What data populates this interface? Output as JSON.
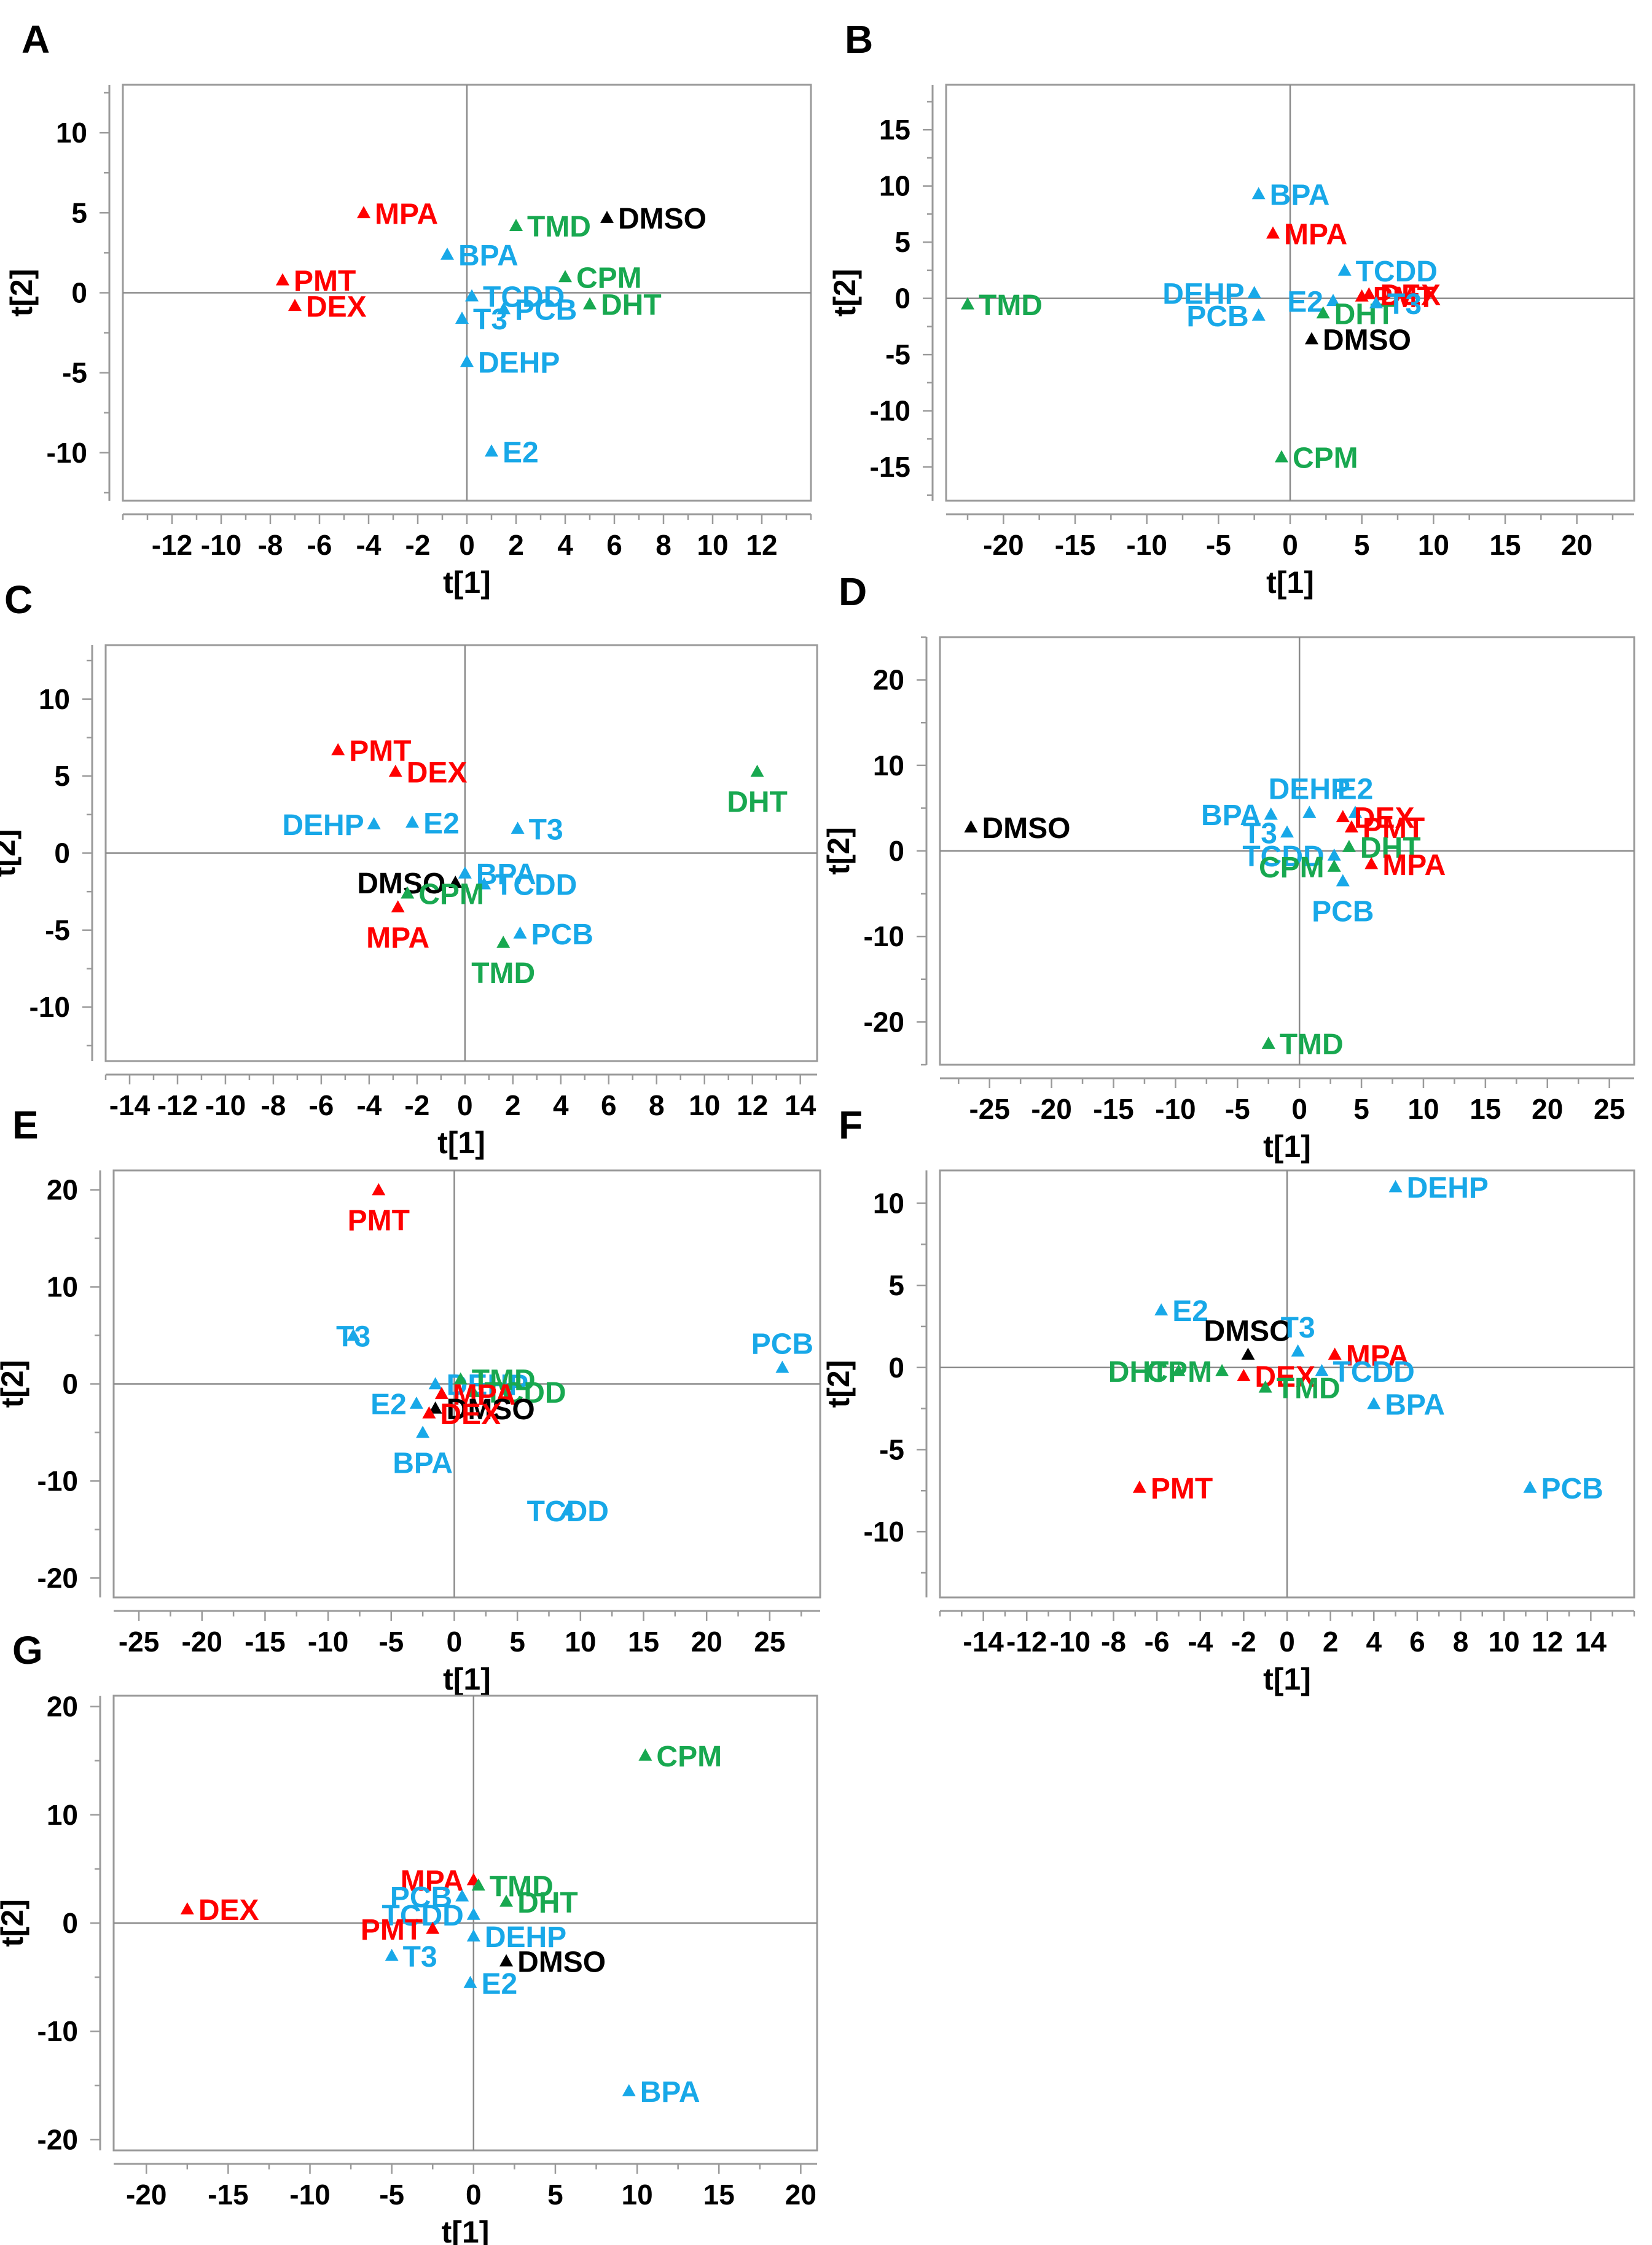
{
  "colors": {
    "red": "#ff0000",
    "blue": "#18a8e8",
    "green": "#18a850",
    "black": "#000000"
  },
  "chart_data": [
    {
      "panel": "A",
      "type": "scatter",
      "xlabel": "t[1]",
      "ylabel": "t[2]",
      "xlim": [
        -14,
        14
      ],
      "ylim": [
        -13,
        13
      ],
      "grid": false,
      "xticks": [
        -12,
        -10,
        -8,
        -6,
        -4,
        -2,
        0,
        2,
        4,
        6,
        8,
        10,
        12
      ],
      "yticks": [
        -10,
        -5,
        0,
        5,
        10
      ],
      "points": [
        {
          "label": "MPA",
          "x": -4.2,
          "y": 5.0,
          "color": "red",
          "label_pos": "right"
        },
        {
          "label": "PMT",
          "x": -7.5,
          "y": 0.8,
          "color": "red",
          "label_pos": "right"
        },
        {
          "label": "DEX",
          "x": -7.0,
          "y": -0.8,
          "color": "red",
          "label_pos": "right"
        },
        {
          "label": "TMD",
          "x": 2.0,
          "y": 4.2,
          "color": "green",
          "label_pos": "right"
        },
        {
          "label": "DMSO",
          "x": 5.7,
          "y": 4.7,
          "color": "black",
          "label_pos": "right"
        },
        {
          "label": "BPA",
          "x": -0.8,
          "y": 2.4,
          "color": "blue",
          "label_pos": "right"
        },
        {
          "label": "CPM",
          "x": 4.0,
          "y": 1.0,
          "color": "green",
          "label_pos": "right"
        },
        {
          "label": "TCDD",
          "x": 0.2,
          "y": -0.2,
          "color": "blue",
          "label_pos": "right"
        },
        {
          "label": "PCB",
          "x": 1.5,
          "y": -1.0,
          "color": "blue",
          "label_pos": "right"
        },
        {
          "label": "DHT",
          "x": 5.0,
          "y": -0.7,
          "color": "green",
          "label_pos": "right"
        },
        {
          "label": "T3",
          "x": -0.2,
          "y": -1.6,
          "color": "blue",
          "label_pos": "right"
        },
        {
          "label": "DEHP",
          "x": 0.0,
          "y": -4.3,
          "color": "blue",
          "label_pos": "right"
        },
        {
          "label": "E2",
          "x": 1.0,
          "y": -9.9,
          "color": "blue",
          "label_pos": "right"
        }
      ]
    },
    {
      "panel": "B",
      "type": "scatter",
      "xlabel": "t[1]",
      "ylabel": "t[2]",
      "xlim": [
        -24,
        24
      ],
      "ylim": [
        -18,
        19
      ],
      "grid": false,
      "xticks": [
        -20,
        -15,
        -10,
        -5,
        0,
        5,
        10,
        15,
        20
      ],
      "yticks": [
        -15,
        -10,
        -5,
        0,
        5,
        10,
        15
      ],
      "points": [
        {
          "label": "BPA",
          "x": -2.2,
          "y": 9.3,
          "color": "blue",
          "label_pos": "right"
        },
        {
          "label": "MPA",
          "x": -1.2,
          "y": 5.8,
          "color": "red",
          "label_pos": "right"
        },
        {
          "label": "DEHP",
          "x": -2.5,
          "y": 0.5,
          "color": "blue",
          "label_pos": "left"
        },
        {
          "label": "TCDD",
          "x": 3.8,
          "y": 2.5,
          "color": "blue",
          "label_pos": "right"
        },
        {
          "label": "PCB",
          "x": -2.2,
          "y": -1.5,
          "color": "blue",
          "label_pos": "left"
        },
        {
          "label": "E2",
          "x": 3.0,
          "y": -0.2,
          "color": "blue",
          "label_pos": "left"
        },
        {
          "label": "DHT",
          "x": 2.3,
          "y": -1.3,
          "color": "green",
          "label_pos": "right"
        },
        {
          "label": "DEX",
          "x": 5.5,
          "y": 0.4,
          "color": "red",
          "label_pos": "right"
        },
        {
          "label": "PMT",
          "x": 5.0,
          "y": 0.2,
          "color": "red",
          "label_pos": "right"
        },
        {
          "label": "T3",
          "x": 6.0,
          "y": -0.4,
          "color": "blue",
          "label_pos": "right"
        },
        {
          "label": "TMD",
          "x": -22.5,
          "y": -0.5,
          "color": "green",
          "label_pos": "right"
        },
        {
          "label": "DMSO",
          "x": 1.5,
          "y": -3.6,
          "color": "black",
          "label_pos": "right"
        },
        {
          "label": "CPM",
          "x": -0.6,
          "y": -14.1,
          "color": "green",
          "label_pos": "right"
        }
      ]
    },
    {
      "panel": "C",
      "type": "scatter",
      "xlabel": "t[1]",
      "ylabel": "t[2]",
      "xlim": [
        -15,
        14.7
      ],
      "ylim": [
        -13.5,
        13.5
      ],
      "grid": false,
      "xticks": [
        -14,
        -12,
        -10,
        -8,
        -6,
        -4,
        -2,
        0,
        2,
        4,
        6,
        8,
        10,
        12,
        14
      ],
      "yticks": [
        -10,
        -5,
        0,
        5,
        10
      ],
      "points": [
        {
          "label": "PMT",
          "x": -5.3,
          "y": 6.7,
          "color": "red",
          "label_pos": "right"
        },
        {
          "label": "DEX",
          "x": -2.9,
          "y": 5.3,
          "color": "red",
          "label_pos": "right"
        },
        {
          "label": "DHT",
          "x": 12.2,
          "y": 5.3,
          "color": "green",
          "label_pos": "below"
        },
        {
          "label": "DEHP",
          "x": -3.8,
          "y": 1.9,
          "color": "blue",
          "label_pos": "left"
        },
        {
          "label": "E2",
          "x": -2.2,
          "y": 2.0,
          "color": "blue",
          "label_pos": "right"
        },
        {
          "label": "T3",
          "x": 2.2,
          "y": 1.6,
          "color": "blue",
          "label_pos": "right"
        },
        {
          "label": "BPA",
          "x": 0.0,
          "y": -1.3,
          "color": "blue",
          "label_pos": "right"
        },
        {
          "label": "DMSO",
          "x": -0.4,
          "y": -1.9,
          "color": "black",
          "label_pos": "left"
        },
        {
          "label": "TCDD",
          "x": 0.8,
          "y": -2.0,
          "color": "blue",
          "label_pos": "right"
        },
        {
          "label": "CPM",
          "x": -2.4,
          "y": -2.6,
          "color": "green",
          "label_pos": "right"
        },
        {
          "label": "MPA",
          "x": -2.8,
          "y": -3.5,
          "color": "red",
          "label_pos": "below"
        },
        {
          "label": "PCB",
          "x": 2.3,
          "y": -5.2,
          "color": "blue",
          "label_pos": "right"
        },
        {
          "label": "TMD",
          "x": 1.6,
          "y": -5.8,
          "color": "green",
          "label_pos": "below"
        }
      ]
    },
    {
      "panel": "D",
      "type": "scatter",
      "xlabel": "t[1]",
      "ylabel": "t[2]",
      "xlim": [
        -29,
        27
      ],
      "ylim": [
        -25,
        25
      ],
      "grid": false,
      "xticks": [
        -25,
        -20,
        -15,
        -10,
        -5,
        0,
        5,
        10,
        15,
        20,
        25
      ],
      "yticks": [
        -20,
        -10,
        0,
        10,
        20
      ],
      "points": [
        {
          "label": "DMSO",
          "x": -26.5,
          "y": 2.8,
          "color": "black",
          "label_pos": "right"
        },
        {
          "label": "DEHP",
          "x": 0.8,
          "y": 4.5,
          "color": "blue",
          "label_pos": "above"
        },
        {
          "label": "E2",
          "x": 4.5,
          "y": 4.5,
          "color": "blue",
          "label_pos": "above"
        },
        {
          "label": "BPA",
          "x": -2.3,
          "y": 4.3,
          "color": "blue",
          "label_pos": "left"
        },
        {
          "label": "T3",
          "x": -1.0,
          "y": 2.2,
          "color": "blue",
          "label_pos": "left"
        },
        {
          "label": "DEX",
          "x": 3.5,
          "y": 4.0,
          "color": "red",
          "label_pos": "right"
        },
        {
          "label": "PMT",
          "x": 4.2,
          "y": 2.8,
          "color": "red",
          "label_pos": "right"
        },
        {
          "label": "DHT",
          "x": 4.0,
          "y": 0.5,
          "color": "green",
          "label_pos": "right"
        },
        {
          "label": "TCDD",
          "x": 2.8,
          "y": -0.5,
          "color": "blue",
          "label_pos": "left"
        },
        {
          "label": "MPA",
          "x": 5.8,
          "y": -1.5,
          "color": "red",
          "label_pos": "right"
        },
        {
          "label": "CPM",
          "x": 2.8,
          "y": -1.8,
          "color": "green",
          "label_pos": "left"
        },
        {
          "label": "PCB",
          "x": 3.5,
          "y": -3.5,
          "color": "blue",
          "label_pos": "below"
        },
        {
          "label": "TMD",
          "x": -2.5,
          "y": -22.5,
          "color": "green",
          "label_pos": "right"
        }
      ]
    },
    {
      "panel": "E",
      "type": "scatter",
      "xlabel": "t[1]",
      "ylabel": "t[2]",
      "xlim": [
        -27,
        29
      ],
      "ylim": [
        -22,
        22
      ],
      "grid": false,
      "xticks": [
        -25,
        -20,
        -15,
        -10,
        -5,
        0,
        5,
        10,
        15,
        20,
        25
      ],
      "yticks": [
        -20,
        -10,
        0,
        10,
        20
      ],
      "points": [
        {
          "label": "PMT",
          "x": -6.0,
          "y": 20.0,
          "color": "red",
          "label_pos": "below"
        },
        {
          "label": "T3",
          "x": -8.0,
          "y": 5.0,
          "color": "blue",
          "label_pos": "none"
        },
        {
          "label": "PCB",
          "x": 26.0,
          "y": 1.7,
          "color": "blue",
          "label_pos": "above"
        },
        {
          "label": "DEHP",
          "x": -1.5,
          "y": 0.0,
          "color": "blue",
          "label_pos": "right"
        },
        {
          "label": "TMD",
          "x": 0.5,
          "y": 0.5,
          "color": "green",
          "label_pos": "right"
        },
        {
          "label": "TCDD",
          "x": 1.5,
          "y": -0.8,
          "color": "green",
          "label_pos": "right"
        },
        {
          "label": "MPA",
          "x": -1.0,
          "y": -1.0,
          "color": "red",
          "label_pos": "right"
        },
        {
          "label": "E2",
          "x": -3.0,
          "y": -2.0,
          "color": "blue",
          "label_pos": "left"
        },
        {
          "label": "DMSO",
          "x": -1.5,
          "y": -2.5,
          "color": "black",
          "label_pos": "right"
        },
        {
          "label": "DEX",
          "x": -2.0,
          "y": -3.0,
          "color": "red",
          "label_pos": "right"
        },
        {
          "label": "BPA",
          "x": -2.5,
          "y": -5.0,
          "color": "blue",
          "label_pos": "below"
        },
        {
          "label": "TCDD",
          "x": 9.0,
          "y": -13.0,
          "color": "blue",
          "label_pos": "none"
        }
      ]
    },
    {
      "panel": "F",
      "type": "scatter",
      "xlabel": "t[1]",
      "ylabel": "t[2]",
      "xlim": [
        -16,
        16
      ],
      "ylim": [
        -14,
        12
      ],
      "grid": false,
      "xticks": [
        -14,
        -12,
        -10,
        -8,
        -6,
        -4,
        -2,
        0,
        2,
        4,
        6,
        8,
        10,
        12,
        14
      ],
      "yticks": [
        -10,
        -5,
        0,
        5,
        10
      ],
      "points": [
        {
          "label": "DEHP",
          "x": 5.0,
          "y": 11.0,
          "color": "blue",
          "label_pos": "right"
        },
        {
          "label": "E2",
          "x": -5.8,
          "y": 3.5,
          "color": "blue",
          "label_pos": "right"
        },
        {
          "label": "DMSO",
          "x": -1.8,
          "y": 0.8,
          "color": "black",
          "label_pos": "above"
        },
        {
          "label": "T3",
          "x": 0.5,
          "y": 1.0,
          "color": "blue",
          "label_pos": "above"
        },
        {
          "label": "MPA",
          "x": 2.2,
          "y": 0.8,
          "color": "red",
          "label_pos": "right"
        },
        {
          "label": "DHT",
          "x": -5.0,
          "y": -0.2,
          "color": "green",
          "label_pos": "left"
        },
        {
          "label": "CPM",
          "x": -3.0,
          "y": -0.2,
          "color": "green",
          "label_pos": "left"
        },
        {
          "label": "DEX",
          "x": -2.0,
          "y": -0.5,
          "color": "red",
          "label_pos": "right"
        },
        {
          "label": "TMD",
          "x": -1.0,
          "y": -1.2,
          "color": "green",
          "label_pos": "right"
        },
        {
          "label": "TCDD",
          "x": 1.6,
          "y": -0.2,
          "color": "blue",
          "label_pos": "right"
        },
        {
          "label": "BPA",
          "x": 4.0,
          "y": -2.2,
          "color": "blue",
          "label_pos": "right"
        },
        {
          "label": "PMT",
          "x": -6.8,
          "y": -7.3,
          "color": "red",
          "label_pos": "right"
        },
        {
          "label": "PCB",
          "x": 11.2,
          "y": -7.3,
          "color": "blue",
          "label_pos": "right"
        }
      ]
    },
    {
      "panel": "G",
      "type": "scatter",
      "xlabel": "t[1]",
      "ylabel": "t[2]",
      "xlim": [
        -22,
        21
      ],
      "ylim": [
        -21,
        21
      ],
      "grid": false,
      "xticks": [
        -20,
        -15,
        -10,
        -5,
        0,
        5,
        10,
        15,
        20
      ],
      "yticks": [
        -20,
        -10,
        0,
        10,
        20
      ],
      "points": [
        {
          "label": "CPM",
          "x": 10.5,
          "y": 15.5,
          "color": "green",
          "label_pos": "right"
        },
        {
          "label": "DEX",
          "x": -17.5,
          "y": 1.3,
          "color": "red",
          "label_pos": "right"
        },
        {
          "label": "MPA",
          "x": 0.0,
          "y": 4.0,
          "color": "red",
          "label_pos": "left"
        },
        {
          "label": "TMD",
          "x": 0.3,
          "y": 3.5,
          "color": "green",
          "label_pos": "right"
        },
        {
          "label": "PCB",
          "x": -0.7,
          "y": 2.5,
          "color": "blue",
          "label_pos": "left"
        },
        {
          "label": "DHT",
          "x": 2.0,
          "y": 2.0,
          "color": "green",
          "label_pos": "right"
        },
        {
          "label": "TCDD",
          "x": 0.0,
          "y": 0.8,
          "color": "blue",
          "label_pos": "left"
        },
        {
          "label": "PMT",
          "x": -2.5,
          "y": -0.5,
          "color": "red",
          "label_pos": "left"
        },
        {
          "label": "DEHP",
          "x": 0.0,
          "y": -1.2,
          "color": "blue",
          "label_pos": "right"
        },
        {
          "label": "T3",
          "x": -5.0,
          "y": -3.0,
          "color": "blue",
          "label_pos": "right"
        },
        {
          "label": "DMSO",
          "x": 2.0,
          "y": -3.5,
          "color": "black",
          "label_pos": "right"
        },
        {
          "label": "E2",
          "x": -0.2,
          "y": -5.5,
          "color": "blue",
          "label_pos": "right"
        },
        {
          "label": "BPA",
          "x": 9.5,
          "y": -15.5,
          "color": "blue",
          "label_pos": "right"
        }
      ]
    }
  ]
}
